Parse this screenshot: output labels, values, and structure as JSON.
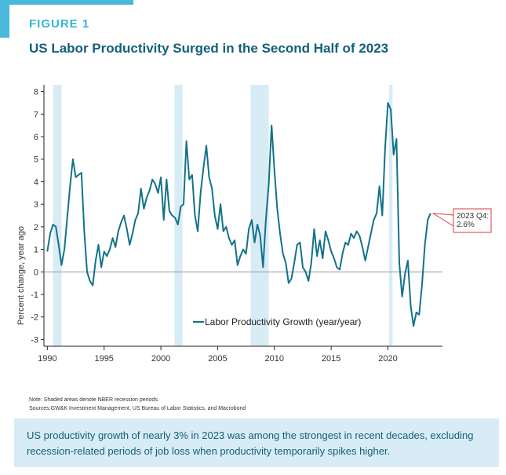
{
  "header": {
    "figure_label": "FIGURE 1",
    "title": "US Labor Productivity Surged in the Second Half of 2023"
  },
  "colors": {
    "accent": "#4ab7dc",
    "line": "#13728a",
    "recession_shade": "#d8ecf6",
    "annotation_border": "#e03a3e",
    "zero_line": "#999999"
  },
  "chart_data": {
    "type": "line",
    "title": "",
    "xlabel": "",
    "ylabel": "Percent change, year ago",
    "xlim": [
      1989.7,
      2024.8
    ],
    "ylim": [
      -3.3,
      8.3
    ],
    "x_ticks": [
      1990,
      1995,
      2000,
      2005,
      2010,
      2015,
      2020
    ],
    "y_ticks": [
      -3,
      -2,
      -1,
      0,
      1,
      2,
      3,
      4,
      5,
      6,
      7,
      8
    ],
    "grid": false,
    "legend_position": "bottom-center",
    "recession_periods": [
      [
        1990.5,
        1991.25
      ],
      [
        2001.2,
        2001.9
      ],
      [
        2007.9,
        2009.5
      ],
      [
        2020.1,
        2020.4
      ]
    ],
    "series": [
      {
        "name": "Labor Productivity Growth (year/year)",
        "points": [
          [
            1990.0,
            0.9
          ],
          [
            1990.25,
            1.7
          ],
          [
            1990.5,
            2.1
          ],
          [
            1990.75,
            2.0
          ],
          [
            1991.0,
            1.2
          ],
          [
            1991.25,
            0.3
          ],
          [
            1991.5,
            1.0
          ],
          [
            1991.75,
            2.4
          ],
          [
            1992.0,
            3.8
          ],
          [
            1992.25,
            5.0
          ],
          [
            1992.5,
            4.2
          ],
          [
            1992.75,
            4.3
          ],
          [
            1993.0,
            4.4
          ],
          [
            1993.25,
            1.8
          ],
          [
            1993.5,
            0.0
          ],
          [
            1993.75,
            -0.4
          ],
          [
            1994.0,
            -0.6
          ],
          [
            1994.25,
            0.5
          ],
          [
            1994.5,
            1.2
          ],
          [
            1994.75,
            0.2
          ],
          [
            1995.0,
            0.9
          ],
          [
            1995.25,
            0.7
          ],
          [
            1995.5,
            1.0
          ],
          [
            1995.75,
            1.5
          ],
          [
            1996.0,
            1.1
          ],
          [
            1996.25,
            1.8
          ],
          [
            1996.5,
            2.2
          ],
          [
            1996.75,
            2.5
          ],
          [
            1997.0,
            1.9
          ],
          [
            1997.25,
            1.2
          ],
          [
            1997.5,
            1.7
          ],
          [
            1997.75,
            2.3
          ],
          [
            1998.0,
            2.6
          ],
          [
            1998.25,
            3.7
          ],
          [
            1998.5,
            2.8
          ],
          [
            1998.75,
            3.3
          ],
          [
            1999.0,
            3.6
          ],
          [
            1999.25,
            4.1
          ],
          [
            1999.5,
            3.9
          ],
          [
            1999.75,
            3.5
          ],
          [
            2000.0,
            4.2
          ],
          [
            2000.25,
            2.3
          ],
          [
            2000.5,
            4.1
          ],
          [
            2000.75,
            2.7
          ],
          [
            2001.0,
            2.5
          ],
          [
            2001.25,
            2.4
          ],
          [
            2001.5,
            2.1
          ],
          [
            2001.75,
            2.9
          ],
          [
            2002.0,
            3.0
          ],
          [
            2002.25,
            5.8
          ],
          [
            2002.5,
            4.1
          ],
          [
            2002.75,
            4.3
          ],
          [
            2003.0,
            2.5
          ],
          [
            2003.25,
            1.8
          ],
          [
            2003.5,
            3.5
          ],
          [
            2003.75,
            4.6
          ],
          [
            2004.0,
            5.6
          ],
          [
            2004.25,
            4.2
          ],
          [
            2004.5,
            3.7
          ],
          [
            2004.75,
            2.5
          ],
          [
            2005.0,
            1.9
          ],
          [
            2005.25,
            3.0
          ],
          [
            2005.5,
            1.8
          ],
          [
            2005.75,
            2.0
          ],
          [
            2006.0,
            1.5
          ],
          [
            2006.25,
            1.2
          ],
          [
            2006.5,
            1.4
          ],
          [
            2006.75,
            0.3
          ],
          [
            2007.0,
            0.7
          ],
          [
            2007.25,
            1.0
          ],
          [
            2007.5,
            0.8
          ],
          [
            2007.75,
            1.9
          ],
          [
            2008.0,
            2.3
          ],
          [
            2008.25,
            1.3
          ],
          [
            2008.5,
            2.1
          ],
          [
            2008.75,
            1.6
          ],
          [
            2009.0,
            0.2
          ],
          [
            2009.25,
            2.3
          ],
          [
            2009.5,
            3.9
          ],
          [
            2009.75,
            6.5
          ],
          [
            2010.0,
            4.5
          ],
          [
            2010.25,
            2.8
          ],
          [
            2010.5,
            1.7
          ],
          [
            2010.75,
            0.8
          ],
          [
            2011.0,
            0.4
          ],
          [
            2011.25,
            -0.5
          ],
          [
            2011.5,
            -0.3
          ],
          [
            2011.75,
            0.4
          ],
          [
            2012.0,
            1.2
          ],
          [
            2012.25,
            1.3
          ],
          [
            2012.5,
            0.2
          ],
          [
            2012.75,
            0.0
          ],
          [
            2013.0,
            -0.4
          ],
          [
            2013.25,
            0.4
          ],
          [
            2013.5,
            1.9
          ],
          [
            2013.75,
            0.7
          ],
          [
            2014.0,
            1.4
          ],
          [
            2014.25,
            0.6
          ],
          [
            2014.5,
            1.8
          ],
          [
            2014.75,
            1.4
          ],
          [
            2015.0,
            0.9
          ],
          [
            2015.25,
            0.6
          ],
          [
            2015.5,
            0.2
          ],
          [
            2015.75,
            0.1
          ],
          [
            2016.0,
            0.8
          ],
          [
            2016.25,
            1.3
          ],
          [
            2016.5,
            1.2
          ],
          [
            2016.75,
            1.7
          ],
          [
            2017.0,
            1.5
          ],
          [
            2017.25,
            1.8
          ],
          [
            2017.5,
            1.6
          ],
          [
            2017.75,
            1.1
          ],
          [
            2018.0,
            0.5
          ],
          [
            2018.25,
            1.1
          ],
          [
            2018.5,
            1.7
          ],
          [
            2018.75,
            2.3
          ],
          [
            2019.0,
            2.6
          ],
          [
            2019.25,
            3.8
          ],
          [
            2019.5,
            2.5
          ],
          [
            2019.75,
            5.5
          ],
          [
            2020.0,
            7.5
          ],
          [
            2020.25,
            7.2
          ],
          [
            2020.5,
            5.2
          ],
          [
            2020.75,
            5.9
          ],
          [
            2021.0,
            0.4
          ],
          [
            2021.25,
            -1.1
          ],
          [
            2021.5,
            -0.1
          ],
          [
            2021.75,
            0.5
          ],
          [
            2022.0,
            -1.5
          ],
          [
            2022.25,
            -2.4
          ],
          [
            2022.5,
            -1.8
          ],
          [
            2022.75,
            -1.9
          ],
          [
            2023.0,
            -0.6
          ],
          [
            2023.25,
            1.2
          ],
          [
            2023.5,
            2.3
          ],
          [
            2023.75,
            2.6
          ]
        ]
      }
    ],
    "annotation": {
      "lines": [
        "2023 Q4:",
        "2.6%"
      ],
      "x": 2023.75,
      "y": 2.6
    }
  },
  "notes": {
    "line1": "Note: Shaded areas denote NBER recession periods.",
    "line2": "Sources:GW&K Investment Management, US Bureau of Labor Statistics, and Macrobond"
  },
  "footer": {
    "text": "US productivity growth of nearly 3% in 2023 was among the strongest in recent decades, excluding recession-related periods of job loss when productivity temporarily spikes higher."
  }
}
